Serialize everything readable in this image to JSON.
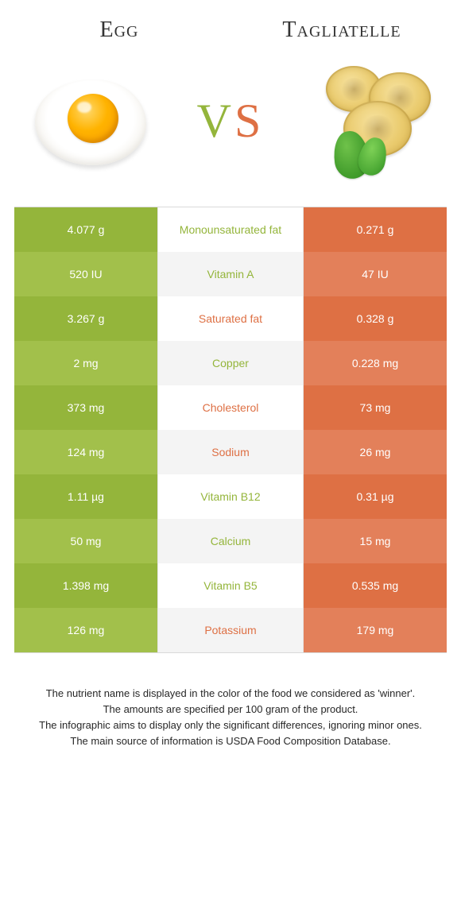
{
  "colors": {
    "left_solid": "#94b53b",
    "left_alt": "#a2c04b",
    "right_solid": "#de7044",
    "right_alt": "#e3805a",
    "mid_bg_a": "#ffffff",
    "mid_bg_b": "#f4f4f4",
    "mid_text_left_win": "#94b53b",
    "mid_text_right_win": "#de7044"
  },
  "header": {
    "left_title": "Egg",
    "right_title": "Tagliatelle",
    "vs_v": "V",
    "vs_s": "S"
  },
  "rows": [
    {
      "nutrient": "Monounsaturated fat",
      "left": "4.077 g",
      "right": "0.271 g",
      "winner": "left"
    },
    {
      "nutrient": "Vitamin A",
      "left": "520 IU",
      "right": "47 IU",
      "winner": "left"
    },
    {
      "nutrient": "Saturated fat",
      "left": "3.267 g",
      "right": "0.328 g",
      "winner": "right"
    },
    {
      "nutrient": "Copper",
      "left": "2 mg",
      "right": "0.228 mg",
      "winner": "left"
    },
    {
      "nutrient": "Cholesterol",
      "left": "373 mg",
      "right": "73 mg",
      "winner": "right"
    },
    {
      "nutrient": "Sodium",
      "left": "124 mg",
      "right": "26 mg",
      "winner": "right"
    },
    {
      "nutrient": "Vitamin B12",
      "left": "1.11 µg",
      "right": "0.31 µg",
      "winner": "left"
    },
    {
      "nutrient": "Calcium",
      "left": "50 mg",
      "right": "15 mg",
      "winner": "left"
    },
    {
      "nutrient": "Vitamin B5",
      "left": "1.398 mg",
      "right": "0.535 mg",
      "winner": "left"
    },
    {
      "nutrient": "Potassium",
      "left": "126 mg",
      "right": "179 mg",
      "winner": "right"
    }
  ],
  "footnotes": [
    "The nutrient name is displayed in the color of the food we considered as 'winner'.",
    "The amounts are specified per 100 gram of the product.",
    "The infographic aims to display only the significant differences, ignoring minor ones.",
    "The main source of information is USDA Food Composition Database."
  ]
}
